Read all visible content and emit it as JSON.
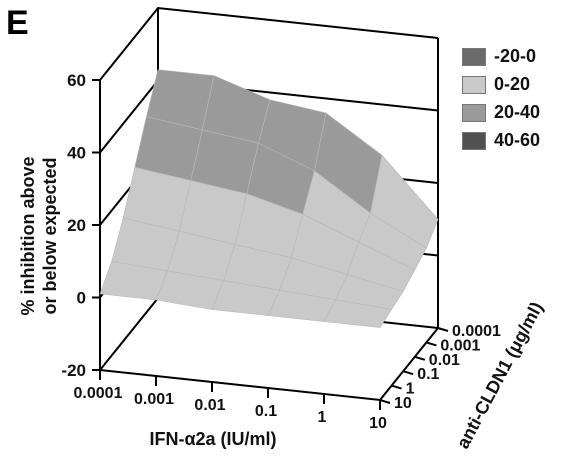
{
  "panel_letter": "E",
  "chart_data": {
    "type": "surface3d",
    "ylabel": "% inhibition above or below expected",
    "ylabel_lines": [
      "% inhibition above",
      "or below expected"
    ],
    "xlabel": "IFN-α2a (IU/ml)",
    "zlabel": "anti-CLDN1 (μg/ml)",
    "x_categories": [
      "0.0001",
      "0.001",
      "0.01",
      "0.1",
      "1",
      "10"
    ],
    "z_categories": [
      "0.0001",
      "0.001",
      "0.01",
      "0.1",
      "1",
      "10"
    ],
    "y_ticks": [
      "60",
      "40",
      "20",
      "0",
      "-20"
    ],
    "ylim": [
      -20,
      60
    ],
    "legend": [
      {
        "label": "-20-0",
        "color": "#6b6b6b"
      },
      {
        "label": "0-20",
        "color": "#c9c9c9"
      },
      {
        "label": "20-40",
        "color": "#9a9a9a"
      },
      {
        "label": "40-60",
        "color": "#505050"
      }
    ],
    "values": [
      [
        43,
        43,
        38,
        36,
        26,
        10
      ],
      [
        34,
        32,
        30,
        24,
        14,
        6
      ],
      [
        24,
        22,
        20,
        16,
        10,
        4
      ],
      [
        14,
        12,
        10,
        8,
        5,
        2
      ],
      [
        6,
        5,
        4,
        3,
        2,
        1
      ],
      [
        1,
        1,
        0,
        0,
        0,
        0
      ]
    ]
  }
}
